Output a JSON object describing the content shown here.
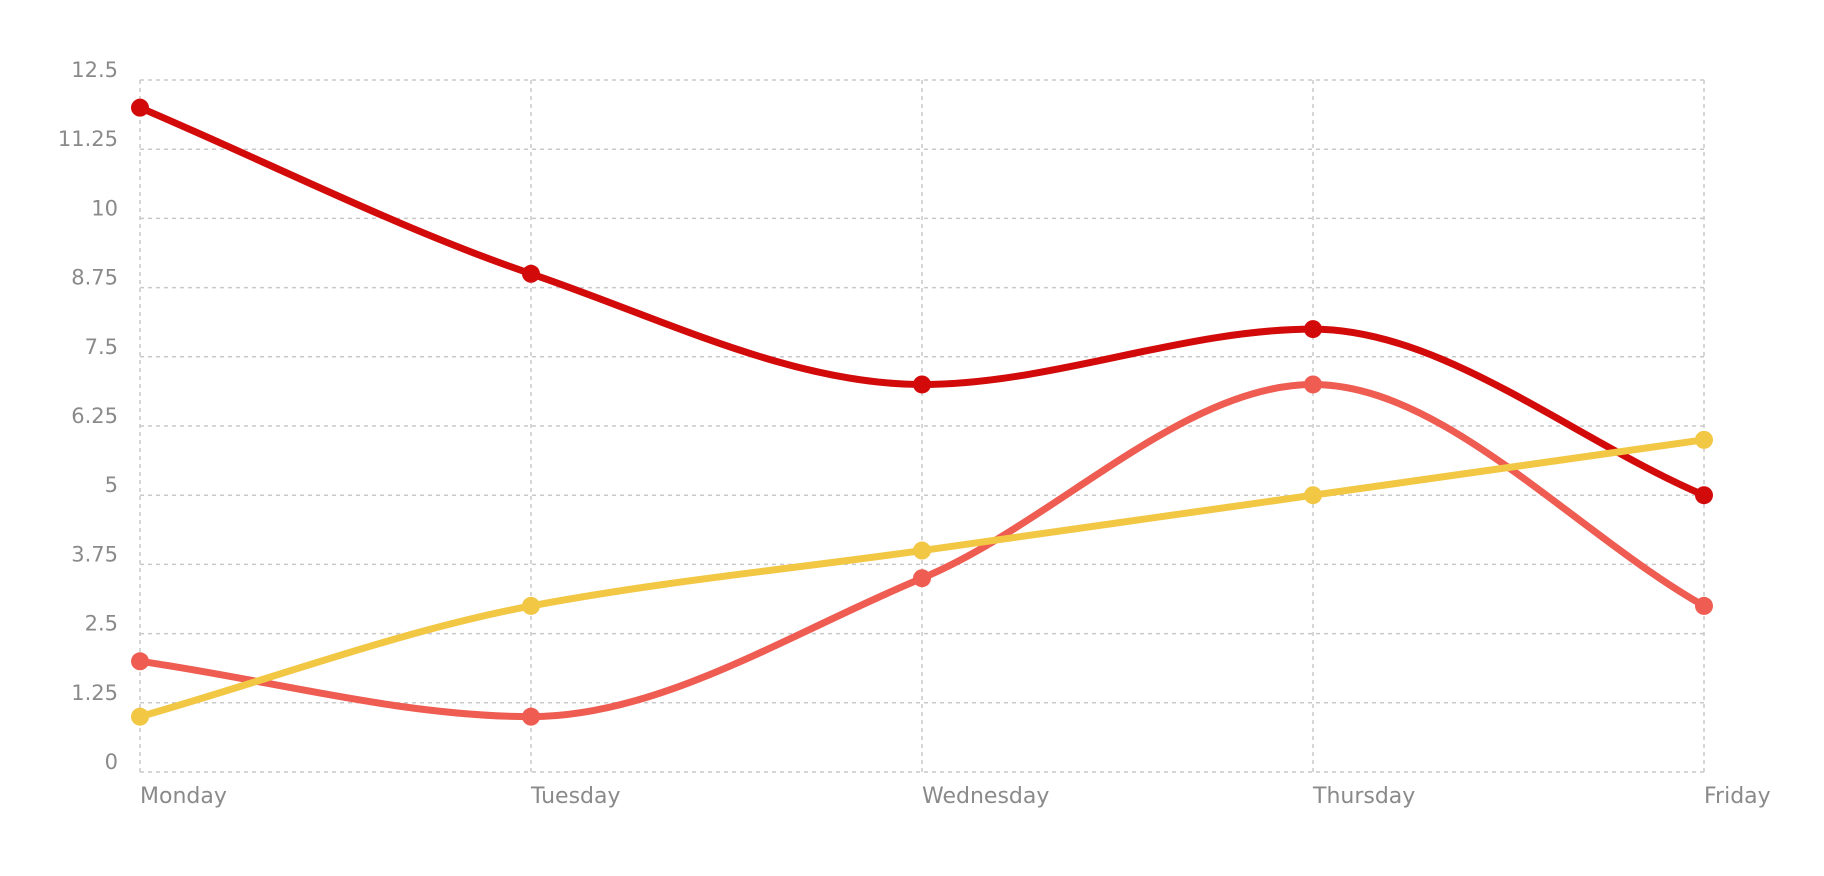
{
  "chart_data": {
    "type": "line",
    "title": "",
    "xlabel": "",
    "ylabel": "",
    "categories": [
      "Monday",
      "Tuesday",
      "Wednesday",
      "Thursday",
      "Friday"
    ],
    "y_ticks": [
      "0",
      "1.25",
      "2.5",
      "3.75",
      "5",
      "6.25",
      "7.5",
      "8.75",
      "10",
      "11.25",
      "12.5"
    ],
    "ylim": [
      0,
      12.5
    ],
    "grid": true,
    "smooth": true,
    "series": [
      {
        "color": "#d20a0a",
        "values": [
          12,
          9,
          7,
          8,
          5
        ]
      },
      {
        "color": "#ee5c52",
        "values": [
          2,
          1,
          3.5,
          7,
          3
        ]
      },
      {
        "color": "#f2c744",
        "values": [
          1,
          3,
          4,
          5,
          6
        ]
      }
    ]
  }
}
